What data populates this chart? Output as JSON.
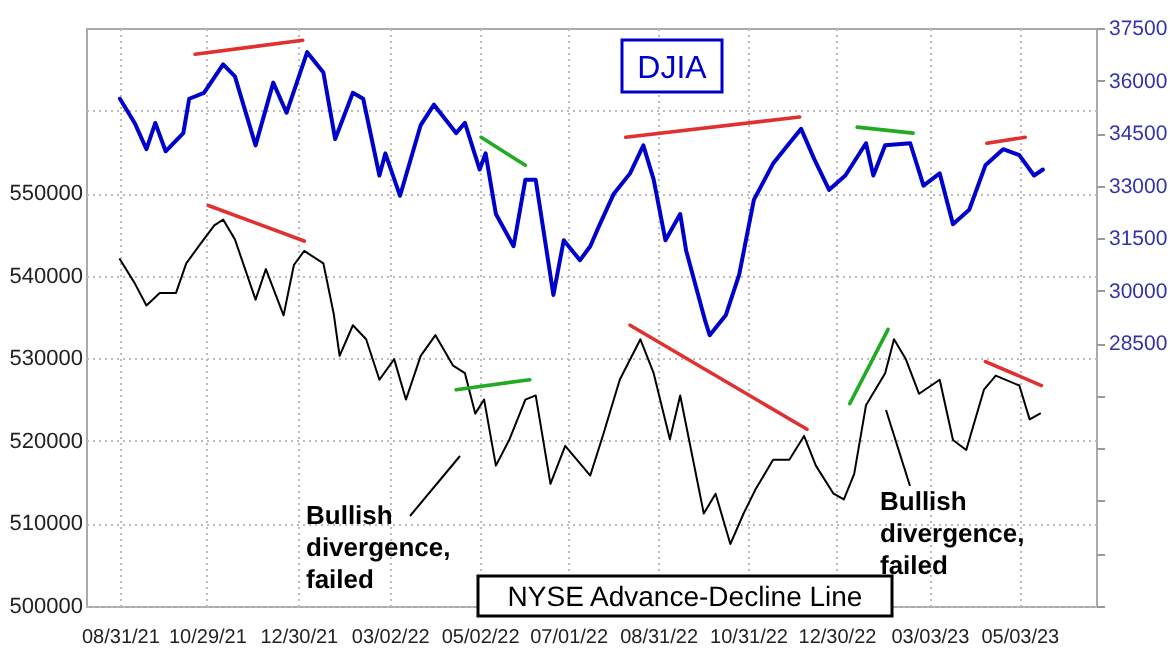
{
  "chart_data": {
    "type": "line",
    "xlim": [
      "2021-08-08",
      "2023-06-24"
    ],
    "xticks": [
      {
        "value": "2021-08-31",
        "label": "08/31/21"
      },
      {
        "value": "2021-10-29",
        "label": "10/29/21"
      },
      {
        "value": "2021-12-30",
        "label": "12/30/21"
      },
      {
        "value": "2022-03-02",
        "label": "03/02/22"
      },
      {
        "value": "2022-05-02",
        "label": "05/02/22"
      },
      {
        "value": "2022-07-01",
        "label": "07/01/22"
      },
      {
        "value": "2022-08-31",
        "label": "08/31/22"
      },
      {
        "value": "2022-10-31",
        "label": "10/31/22"
      },
      {
        "value": "2022-12-30",
        "label": "12/30/22"
      },
      {
        "value": "2023-03-03",
        "label": "03/03/23"
      },
      {
        "value": "2023-05-03",
        "label": "05/03/23"
      }
    ],
    "ylim": [
      500000,
      570000
    ],
    "yticks": [
      500000,
      510000,
      520000,
      530000,
      540000,
      550000,
      {
        "value": 560000,
        "label": null
      }
    ],
    "y2lim": [
      21000,
      37500
    ],
    "y2ticks": [
      {
        "value": 21000,
        "label": null
      },
      {
        "value": 22500,
        "label": null
      },
      {
        "value": 24000,
        "label": null
      },
      {
        "value": 25500,
        "label": null
      },
      {
        "value": 27000,
        "label": null
      },
      28500,
      30000,
      31500,
      33000,
      34500,
      36000,
      37500
    ],
    "grid": true,
    "annotations": [
      "Bullish divergence, failed",
      "Bullish divergence, failed"
    ],
    "series": [
      {
        "name": "DJIA",
        "color": "#0000cc",
        "axis": "y2",
        "x": [
          "2021-08-31",
          "2021-09-10",
          "2021-09-18",
          "2021-09-24",
          "2021-10-01",
          "2021-10-13",
          "2021-10-17",
          "2021-10-27",
          "2021-11-09",
          "2021-11-17",
          "2021-12-01",
          "2021-12-13",
          "2021-12-22",
          "2022-01-05",
          "2022-01-16",
          "2022-01-24",
          "2022-02-05",
          "2022-02-12",
          "2022-02-23",
          "2022-02-27",
          "2022-03-09",
          "2022-03-23",
          "2022-04-01",
          "2022-04-16",
          "2022-04-22",
          "2022-05-02",
          "2022-05-06",
          "2022-05-13",
          "2022-05-25",
          "2022-06-02",
          "2022-06-09",
          "2022-06-21",
          "2022-06-28",
          "2022-07-09",
          "2022-07-16",
          "2022-07-22",
          "2022-08-01",
          "2022-08-12",
          "2022-08-21",
          "2022-08-28",
          "2022-09-05",
          "2022-09-15",
          "2022-09-19",
          "2022-10-02",
          "2022-10-05",
          "2022-10-16",
          "2022-10-25",
          "2022-11-04",
          "2022-11-17",
          "2022-11-28",
          "2022-12-06",
          "2022-12-15",
          "2022-12-25",
          "2023-01-05",
          "2023-01-19",
          "2023-01-24",
          "2023-02-01",
          "2023-02-18",
          "2023-02-27",
          "2023-03-10",
          "2023-03-19",
          "2023-03-30",
          "2023-04-10",
          "2023-04-22",
          "2023-05-03",
          "2023-05-13",
          "2023-05-19"
        ],
        "values": [
          35480,
          34790,
          34040,
          34790,
          33980,
          34500,
          35480,
          35650,
          36460,
          36120,
          34150,
          35940,
          35080,
          36810,
          36230,
          34330,
          35650,
          35480,
          33290,
          33920,
          32710,
          34730,
          35310,
          34500,
          34790,
          33460,
          33920,
          32190,
          31270,
          33170,
          33170,
          29880,
          31440,
          30870,
          31270,
          31850,
          32770,
          33350,
          34150,
          33170,
          31440,
          32190,
          31150,
          29130,
          28730,
          29310,
          30460,
          32600,
          33630,
          34210,
          34620,
          33750,
          32880,
          33290,
          34210,
          33290,
          34150,
          34210,
          33000,
          33350,
          31900,
          32310,
          33580,
          34040,
          33870,
          33290,
          33460
        ]
      },
      {
        "name": "NYSE Advance-Decline Line",
        "color": "#000000",
        "x": [
          "2021-08-31",
          "2021-09-10",
          "2021-09-18",
          "2021-09-27",
          "2021-10-08",
          "2021-10-15",
          "2021-10-24",
          "2021-11-03",
          "2021-11-09",
          "2021-11-17",
          "2021-12-01",
          "2021-12-08",
          "2021-12-20",
          "2021-12-27",
          "2022-01-03",
          "2022-01-16",
          "2022-01-23",
          "2022-01-27",
          "2022-02-05",
          "2022-02-14",
          "2022-02-23",
          "2022-03-05",
          "2022-03-13",
          "2022-03-23",
          "2022-04-02",
          "2022-04-14",
          "2022-04-22",
          "2022-04-29",
          "2022-05-05",
          "2022-05-13",
          "2022-05-22",
          "2022-06-02",
          "2022-06-09",
          "2022-06-19",
          "2022-06-29",
          "2022-07-16",
          "2022-07-25",
          "2022-08-05",
          "2022-08-19",
          "2022-08-28",
          "2022-09-08",
          "2022-09-15",
          "2022-10-01",
          "2022-10-09",
          "2022-10-19",
          "2022-10-28",
          "2022-11-05",
          "2022-11-17",
          "2022-11-28",
          "2022-12-08",
          "2022-12-16",
          "2022-12-28",
          "2023-01-04",
          "2023-01-11",
          "2023-01-19",
          "2023-02-01",
          "2023-02-07",
          "2023-02-15",
          "2023-02-24",
          "2023-03-10",
          "2023-03-19",
          "2023-03-28",
          "2023-04-09",
          "2023-04-17",
          "2023-05-03",
          "2023-05-10",
          "2023-05-17"
        ],
        "values": [
          542000,
          539100,
          536400,
          537900,
          537900,
          541500,
          543700,
          546100,
          546800,
          544400,
          537100,
          540800,
          535200,
          541300,
          543000,
          541500,
          535400,
          530300,
          534000,
          532300,
          527400,
          529900,
          525000,
          530300,
          532800,
          529100,
          528200,
          523300,
          525000,
          517000,
          520100,
          525000,
          525500,
          514800,
          519400,
          515800,
          520900,
          527400,
          532300,
          528200,
          520200,
          525500,
          511200,
          513600,
          507500,
          511200,
          514100,
          517700,
          517700,
          520600,
          517000,
          513600,
          512900,
          516000,
          524300,
          528200,
          532300,
          529900,
          525700,
          527400,
          520100,
          518900,
          526200,
          527900,
          526700,
          522600,
          523300
        ]
      },
      {
        "type": "line",
        "color": "#e03030",
        "axis": "y2",
        "x": [
          "2021-10-21",
          "2022-01-02"
        ],
        "values": [
          36750,
          37150
        ]
      },
      {
        "type": "line",
        "color": "#22aa22",
        "axis": "y2",
        "x": [
          "2022-05-03",
          "2022-06-02"
        ],
        "values": [
          34380,
          33580
        ]
      },
      {
        "type": "line",
        "color": "#e03030",
        "axis": "y2",
        "x": [
          "2022-08-09",
          "2022-12-05"
        ],
        "values": [
          34380,
          34960
        ]
      },
      {
        "type": "line",
        "color": "#22aa22",
        "axis": "y2",
        "x": [
          "2023-01-13",
          "2023-02-20"
        ],
        "values": [
          34670,
          34500
        ]
      },
      {
        "type": "line",
        "color": "#e03030",
        "axis": "y2",
        "x": [
          "2023-04-11",
          "2023-05-07"
        ],
        "values": [
          34210,
          34380
        ]
      },
      {
        "type": "line",
        "color": "#e03030",
        "x": [
          "2021-10-30",
          "2022-01-03"
        ],
        "values": [
          548500,
          544200
        ]
      },
      {
        "type": "line",
        "color": "#22aa22",
        "x": [
          "2022-04-16",
          "2022-06-05"
        ],
        "values": [
          526200,
          527400
        ]
      },
      {
        "type": "line",
        "color": "#e03030",
        "x": [
          "2022-08-12",
          "2022-12-10"
        ],
        "values": [
          534000,
          521400
        ]
      },
      {
        "type": "line",
        "color": "#22aa22",
        "x": [
          "2023-01-08",
          "2023-02-03"
        ],
        "values": [
          524500,
          533500
        ]
      },
      {
        "type": "line",
        "color": "#e03030",
        "x": [
          "2023-04-10",
          "2023-05-18"
        ],
        "values": [
          529600,
          526700
        ]
      }
    ]
  }
}
